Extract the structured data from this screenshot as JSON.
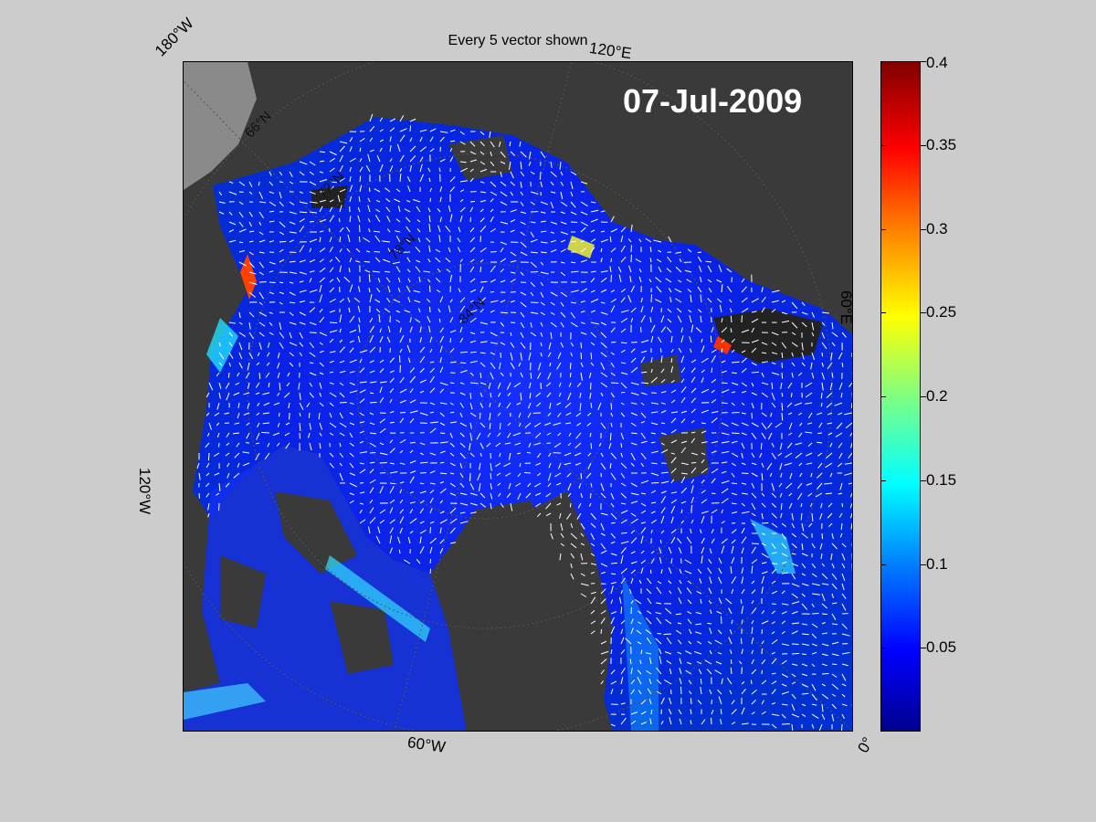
{
  "map": {
    "title": "Every 5 vector shown",
    "date": "07-Jul-2009",
    "longitude_labels": {
      "w180": "180°W",
      "e120": "120°E",
      "e60": "60°E",
      "w120": "120°W",
      "w60": "60°W",
      "zero": "0°"
    },
    "latitude_labels": [
      "66°N",
      "72°N",
      "78°N",
      "84°N"
    ],
    "colors": {
      "land": "#3a3a3a",
      "ocean_low": "#0000ff",
      "ocean_mid": "#0080ff",
      "vectors": "#ffffff"
    }
  },
  "colorbar": {
    "min": 0,
    "max": 0.4,
    "colormap": "jet",
    "tick_labels": [
      "0.4",
      "0.35",
      "0.3",
      "0.25",
      "0.2",
      "0.15",
      "0.1",
      "0.05"
    ],
    "tick_values": [
      0.4,
      0.35,
      0.3,
      0.25,
      0.2,
      0.15,
      0.1,
      0.05
    ]
  }
}
